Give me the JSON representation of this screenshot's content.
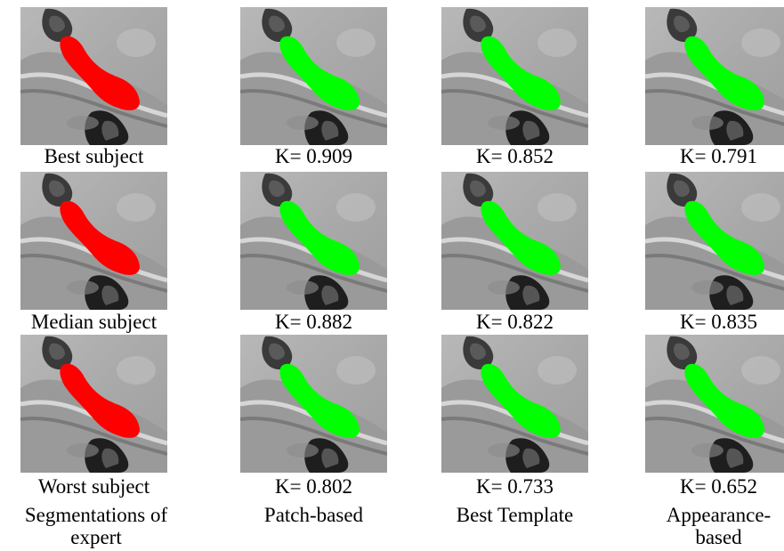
{
  "rows": [
    {
      "panels": [
        {
          "caption": "Best subject",
          "mask": "expert"
        },
        {
          "caption": "K= 0.909",
          "mask": "auto"
        },
        {
          "caption": "K= 0.852",
          "mask": "auto"
        },
        {
          "caption": "K= 0.791",
          "mask": "auto"
        }
      ]
    },
    {
      "panels": [
        {
          "caption": "Median subject",
          "mask": "expert"
        },
        {
          "caption": "K= 0.882",
          "mask": "auto"
        },
        {
          "caption": "K= 0.822",
          "mask": "auto"
        },
        {
          "caption": "K= 0.835",
          "mask": "auto"
        }
      ]
    },
    {
      "panels": [
        {
          "caption": "Worst subject",
          "mask": "expert"
        },
        {
          "caption": "K= 0.802",
          "mask": "auto"
        },
        {
          "caption": "K= 0.733",
          "mask": "auto"
        },
        {
          "caption": "K= 0.652",
          "mask": "auto"
        }
      ]
    }
  ],
  "column_labels": [
    "Segmentations of expert",
    "Patch-based",
    "Best Template",
    "Appearance-based"
  ],
  "colors": {
    "expert": "#ff0000",
    "auto": "#00ff00"
  }
}
